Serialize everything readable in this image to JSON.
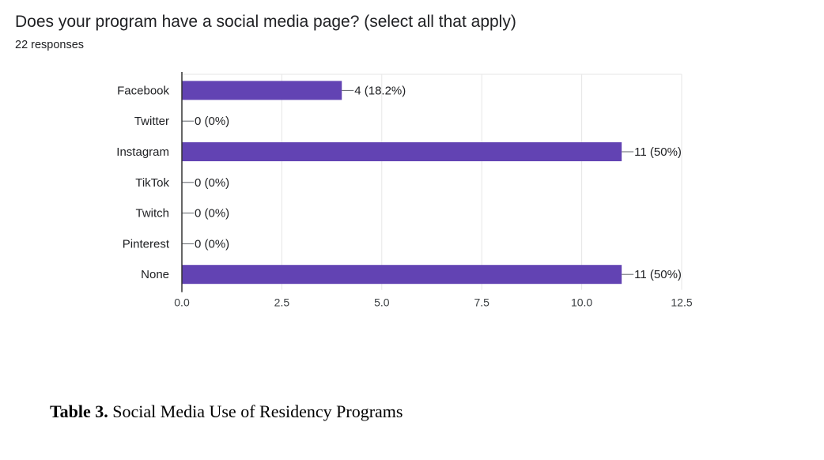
{
  "question": {
    "title": "Does your program have a social media page? (select all that apply)",
    "responses": "22 responses"
  },
  "chart_data": {
    "type": "bar",
    "orientation": "horizontal",
    "title": "Does your program have a social media page? (select all that apply)",
    "categories": [
      "Facebook",
      "Twitter",
      "Instagram",
      "TikTok",
      "Twitch",
      "Pinterest",
      "None"
    ],
    "values": [
      4,
      0,
      11,
      0,
      0,
      0,
      11
    ],
    "data_labels": [
      "4 (18.2%)",
      "0 (0%)",
      "11 (50%)",
      "0 (0%)",
      "0 (0%)",
      "0 (0%)",
      "11 (50%)"
    ],
    "xlim": [
      0,
      12.5
    ],
    "xticks": [
      0,
      2.5,
      5,
      7.5,
      10,
      12.5
    ],
    "xtick_labels": [
      "0.0",
      "2.5",
      "5.0",
      "7.5",
      "10.0",
      "12.5"
    ],
    "xlabel": "",
    "ylabel": "",
    "grid": true,
    "bar_color": "#6243b3"
  },
  "caption": {
    "label": "Table 3.",
    "text": " Social Media Use of Residency Programs"
  }
}
